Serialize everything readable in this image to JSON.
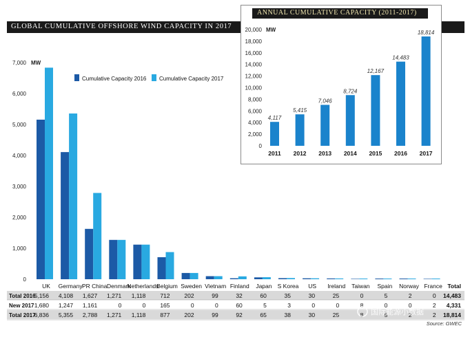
{
  "chart_data": [
    {
      "type": "bar",
      "title": "GLOBAL CUMULATIVE OFFSHORE WIND CAPACITY IN 2017",
      "ylabel": "MW",
      "ylim": [
        0,
        7000
      ],
      "yticks": [
        "0",
        "1,000",
        "2,000",
        "3,000",
        "4,000",
        "5,000",
        "6,000",
        "7,000"
      ],
      "categories": [
        "UK",
        "Germany",
        "PR China",
        "Denmark",
        "Netherlands",
        "Belgium",
        "Sweden",
        "Vietnam",
        "Finland",
        "Japan",
        "S Korea",
        "US",
        "Ireland",
        "Taiwan",
        "Spain",
        "Norway",
        "France"
      ],
      "series": [
        {
          "name": "Cumulative Capacity 2016",
          "color": "#1c5aa6",
          "values": [
            5156,
            4108,
            1627,
            1271,
            1118,
            712,
            202,
            99,
            32,
            60,
            35,
            30,
            25,
            0,
            5,
            2,
            0
          ]
        },
        {
          "name": "Cumulative Capacity 2017",
          "color": "#29a9e1",
          "values": [
            6836,
            5355,
            2788,
            1271,
            1118,
            877,
            202,
            99,
            92,
            65,
            38,
            30,
            25,
            8,
            5,
            2,
            2
          ]
        }
      ],
      "table": {
        "header_total": "Total",
        "rows": [
          {
            "label": "Total 2016",
            "cells": [
              "5,156",
              "4,108",
              "1,627",
              "1,271",
              "1,118",
              "712",
              "202",
              "99",
              "32",
              "60",
              "35",
              "30",
              "25",
              "0",
              "5",
              "2",
              "0"
            ],
            "total": "14,483"
          },
          {
            "label": "New 2017",
            "cells": [
              "1,680",
              "1,247",
              "1,161",
              "0",
              "0",
              "165",
              "0",
              "0",
              "60",
              "5",
              "3",
              "0",
              "0",
              "8",
              "0",
              "0",
              "2"
            ],
            "total": "4,331"
          },
          {
            "label": "Total 2017",
            "cells": [
              "6,836",
              "5,355",
              "2,788",
              "1,271",
              "1,118",
              "877",
              "202",
              "99",
              "92",
              "65",
              "38",
              "30",
              "25",
              "8",
              "5",
              "2",
              "2"
            ],
            "total": "18,814"
          }
        ]
      }
    },
    {
      "type": "bar",
      "title": "ANNUAL CUMULATIVE CAPACITY (2011-2017)",
      "ylabel": "MW",
      "ylim": [
        0,
        20000
      ],
      "yticks": [
        "0",
        "2,000",
        "4,000",
        "6,000",
        "8,000",
        "10,000",
        "12,000",
        "14,000",
        "16,000",
        "18,000",
        "20,000"
      ],
      "categories": [
        "2011",
        "2012",
        "2013",
        "2014",
        "2015",
        "2016",
        "2017"
      ],
      "values": [
        4117,
        5415,
        7046,
        8724,
        12167,
        14483,
        18814
      ],
      "value_labels": [
        "4,117",
        "5,415",
        "7,046",
        "8,724",
        "12,167",
        "14,483",
        "18,814"
      ],
      "color": "#1a83cc"
    }
  ],
  "source": "Source: GWEC",
  "watermark": "国际能源小数据"
}
